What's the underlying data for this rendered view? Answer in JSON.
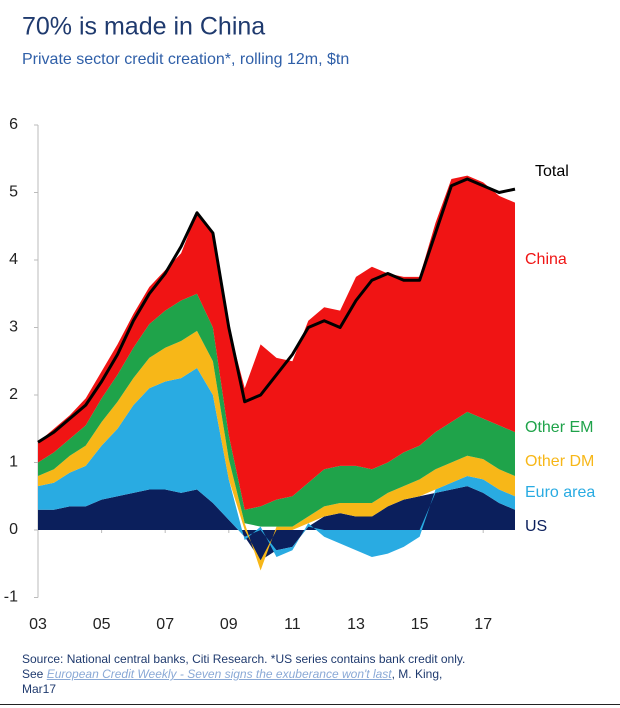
{
  "chart_data": {
    "type": "stacked-area",
    "title": "70% is made in China",
    "subtitle": "Private sector credit creation*, rolling 12m, $tn",
    "x": [
      2003,
      2003.5,
      2004,
      2004.5,
      2005,
      2005.5,
      2006,
      2006.5,
      2007,
      2007.5,
      2008,
      2008.5,
      2009,
      2009.5,
      2010,
      2010.5,
      2011,
      2011.5,
      2012,
      2012.5,
      2013,
      2013.5,
      2014,
      2014.5,
      2015,
      2015.5,
      2016,
      2016.5,
      2017,
      2017.5,
      2018
    ],
    "xlim": [
      2003,
      2018
    ],
    "xticks": [
      {
        "value": 2003,
        "label": "03"
      },
      {
        "value": 2005,
        "label": "05"
      },
      {
        "value": 2007,
        "label": "07"
      },
      {
        "value": 2009,
        "label": "09"
      },
      {
        "value": 2011,
        "label": "11"
      },
      {
        "value": 2013,
        "label": "13"
      },
      {
        "value": 2015,
        "label": "15"
      },
      {
        "value": 2017,
        "label": "17"
      }
    ],
    "ylim": [
      -1,
      6
    ],
    "yticks": [
      -1,
      0,
      1,
      2,
      3,
      4,
      5,
      6
    ],
    "series": [
      {
        "name": "US",
        "color": "#0b1f5c",
        "values": [
          0.3,
          0.3,
          0.35,
          0.35,
          0.45,
          0.5,
          0.55,
          0.6,
          0.6,
          0.55,
          0.6,
          0.4,
          0.15,
          -0.1,
          -0.45,
          -0.3,
          -0.25,
          0.05,
          0.2,
          0.25,
          0.2,
          0.2,
          0.35,
          0.45,
          0.5,
          0.55,
          0.6,
          0.65,
          0.55,
          0.4,
          0.3
        ]
      },
      {
        "name": "Euro area",
        "color": "#29abe2",
        "values": [
          0.35,
          0.4,
          0.5,
          0.6,
          0.8,
          1.0,
          1.3,
          1.5,
          1.6,
          1.7,
          1.8,
          1.6,
          0.6,
          -0.05,
          0.05,
          -0.1,
          -0.05,
          0.05,
          -0.1,
          -0.2,
          -0.3,
          -0.4,
          -0.35,
          -0.25,
          -0.1,
          0.05,
          0.1,
          0.15,
          0.2,
          0.2,
          0.2
        ]
      },
      {
        "name": "Other DM",
        "color": "#f7b718",
        "values": [
          0.15,
          0.2,
          0.25,
          0.3,
          0.35,
          0.4,
          0.4,
          0.45,
          0.5,
          0.55,
          0.55,
          0.5,
          0.3,
          0.1,
          -0.15,
          0.05,
          0.05,
          0.1,
          0.15,
          0.15,
          0.2,
          0.2,
          0.2,
          0.2,
          0.25,
          0.3,
          0.3,
          0.3,
          0.3,
          0.3,
          0.3
        ]
      },
      {
        "name": "Other EM",
        "color": "#1fa34a",
        "values": [
          0.2,
          0.25,
          0.25,
          0.3,
          0.35,
          0.4,
          0.45,
          0.5,
          0.55,
          0.6,
          0.55,
          0.5,
          0.35,
          0.2,
          0.3,
          0.4,
          0.45,
          0.5,
          0.55,
          0.55,
          0.55,
          0.5,
          0.45,
          0.5,
          0.5,
          0.55,
          0.6,
          0.65,
          0.6,
          0.65,
          0.65
        ]
      },
      {
        "name": "China",
        "color": "#f01414",
        "values": [
          0.3,
          0.35,
          0.35,
          0.4,
          0.4,
          0.45,
          0.5,
          0.55,
          0.6,
          0.7,
          1.2,
          1.4,
          1.6,
          1.8,
          2.4,
          2.1,
          2.0,
          2.4,
          2.4,
          2.3,
          2.8,
          3.0,
          2.8,
          2.6,
          2.5,
          3.1,
          3.6,
          3.5,
          3.5,
          3.4,
          3.4
        ]
      },
      {
        "name": "Total",
        "color": "#000000",
        "line": true,
        "values": [
          1.3,
          1.45,
          1.65,
          1.85,
          2.2,
          2.6,
          3.1,
          3.5,
          3.8,
          4.2,
          4.7,
          4.4,
          3.0,
          1.9,
          2.0,
          2.3,
          2.6,
          3.0,
          3.1,
          3.0,
          3.4,
          3.7,
          3.8,
          3.7,
          3.7,
          4.4,
          5.1,
          5.2,
          5.1,
          5.0,
          5.05
        ]
      }
    ]
  },
  "notes": {
    "source": "Source: National central banks, Citi Research. *US series contains bank credit only.",
    "see": "See",
    "link": "European Credit Weekly - Seven signs the exuberance won't last",
    "author": ", M. King,",
    "date": "Mar17"
  }
}
